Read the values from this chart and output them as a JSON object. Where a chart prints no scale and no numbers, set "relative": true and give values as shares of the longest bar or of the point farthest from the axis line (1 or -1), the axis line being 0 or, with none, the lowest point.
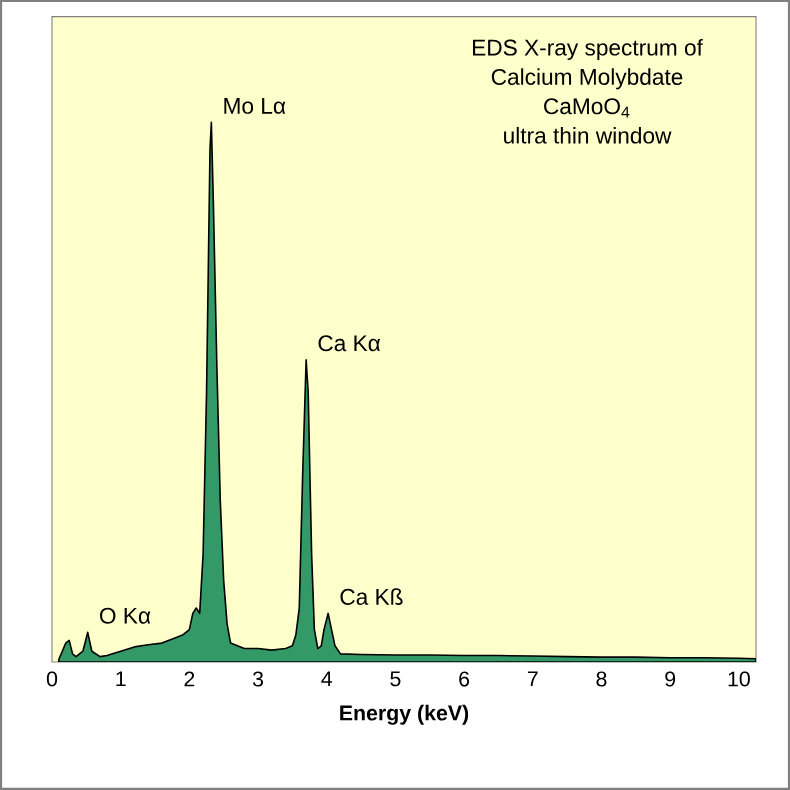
{
  "chart_data": {
    "type": "area",
    "title": "EDS X-ray spectrum of",
    "subtitle": "Calcium Molybdate",
    "xlabel": "Energy (keV)",
    "relative": true,
    "xlim": [
      0,
      10.25
    ],
    "xticks": [
      0,
      1,
      2,
      3,
      4,
      5,
      6,
      7,
      8,
      9,
      10
    ],
    "grid": false,
    "annotations": [
      "CaMoO$_{4}$",
      "ultra thin window",
      {
        "text": "Mo Lα",
        "x": 2.32,
        "y": 1.0
      },
      {
        "text": "Ca Kα",
        "x": 3.7,
        "y": 0.56
      },
      {
        "text": "Ca Kß",
        "x": 4.02,
        "y": 0.09
      },
      {
        "text": "O Kα",
        "x": 0.52,
        "y": 0.055
      }
    ],
    "series": [
      {
        "color": "#339966",
        "x": [
          0.1,
          0.15,
          0.2,
          0.25,
          0.3,
          0.35,
          0.45,
          0.52,
          0.58,
          0.7,
          0.8,
          1.0,
          1.2,
          1.4,
          1.6,
          1.8,
          1.9,
          2.0,
          2.05,
          2.1,
          2.15,
          2.2,
          2.25,
          2.3,
          2.32,
          2.35,
          2.4,
          2.45,
          2.5,
          2.55,
          2.6,
          2.7,
          2.8,
          3.0,
          3.2,
          3.4,
          3.5,
          3.55,
          3.6,
          3.65,
          3.7,
          3.73,
          3.78,
          3.82,
          3.87,
          3.92,
          3.96,
          4.02,
          4.07,
          4.12,
          4.2,
          4.5,
          5.0,
          5.5,
          6.0,
          6.5,
          7.0,
          7.5,
          8.0,
          8.5,
          9.0,
          9.5,
          10.0,
          10.25
        ],
        "values": [
          0.005,
          0.02,
          0.035,
          0.04,
          0.015,
          0.01,
          0.02,
          0.055,
          0.02,
          0.01,
          0.012,
          0.02,
          0.028,
          0.032,
          0.035,
          0.045,
          0.05,
          0.06,
          0.09,
          0.1,
          0.09,
          0.2,
          0.5,
          0.95,
          1.0,
          0.85,
          0.55,
          0.3,
          0.15,
          0.07,
          0.035,
          0.03,
          0.025,
          0.025,
          0.022,
          0.025,
          0.03,
          0.05,
          0.1,
          0.35,
          0.56,
          0.5,
          0.2,
          0.06,
          0.025,
          0.03,
          0.06,
          0.09,
          0.06,
          0.03,
          0.015,
          0.014,
          0.013,
          0.013,
          0.012,
          0.012,
          0.011,
          0.01,
          0.009,
          0.009,
          0.008,
          0.008,
          0.007,
          0.006
        ]
      }
    ]
  }
}
